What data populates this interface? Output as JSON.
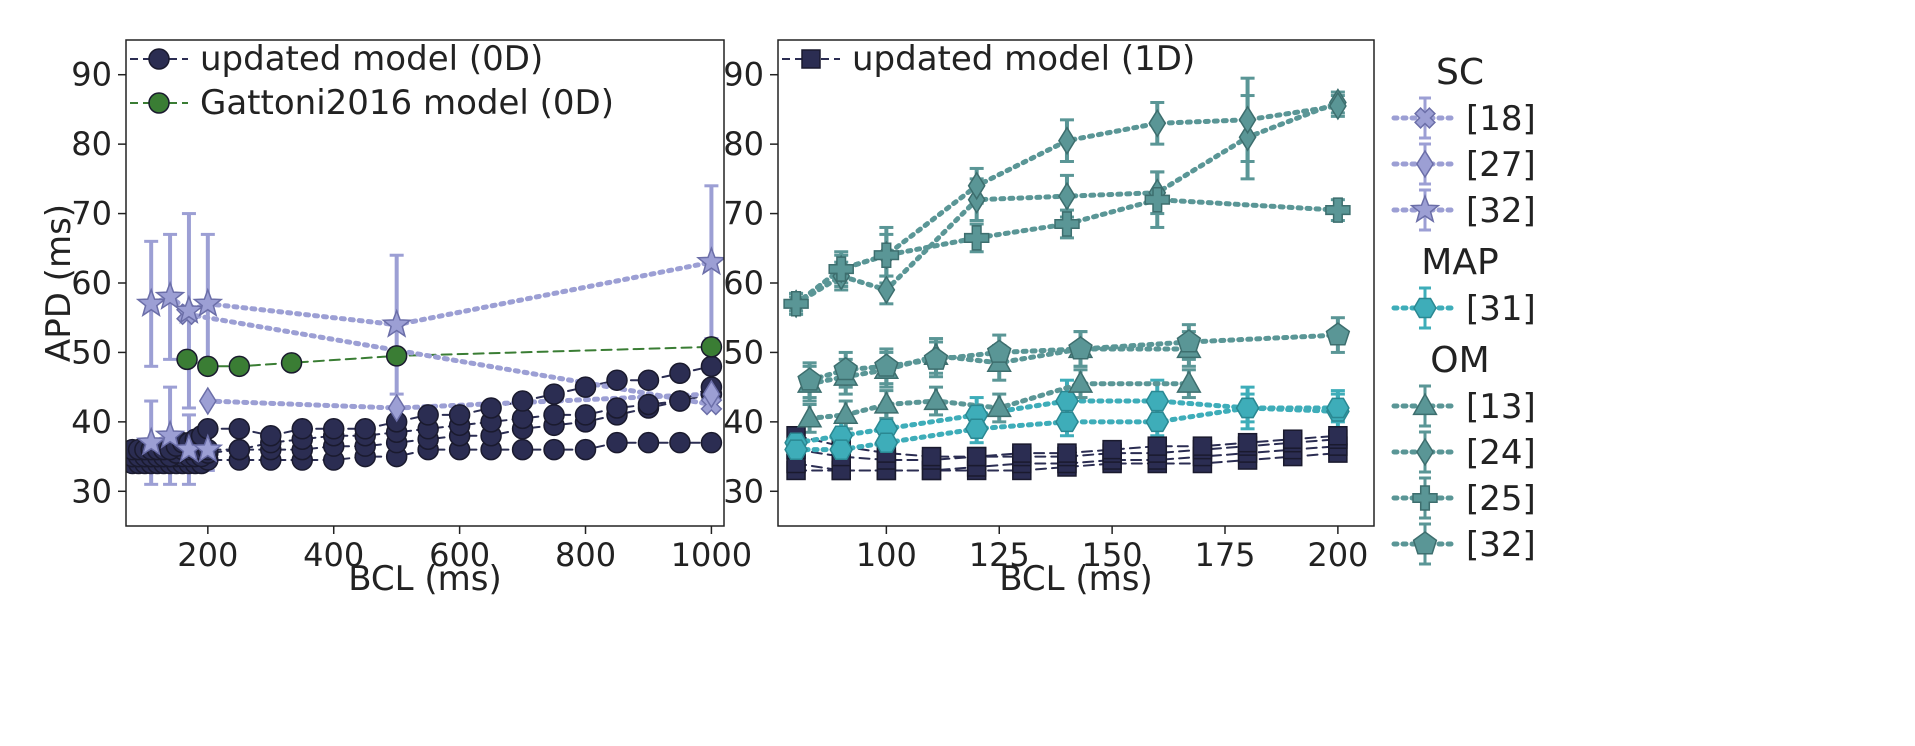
{
  "chart_data": [
    {
      "type": "line",
      "panel": "left",
      "xlabel": "BCL (ms)",
      "ylabel": "APD (ms)",
      "xlim": [
        70,
        1020
      ],
      "ylim": [
        25,
        95
      ],
      "xticks": [
        200,
        400,
        600,
        800,
        1000
      ],
      "yticks": [
        30,
        40,
        50,
        60,
        70,
        80,
        90
      ],
      "legend": [
        {
          "label": "updated model (0D)",
          "color": "#2b2d52",
          "marker": "circle",
          "linestyle": "dashed"
        },
        {
          "label": "Gattoni2016 model (0D)",
          "color": "#3a7d34",
          "marker": "circle",
          "linestyle": "dashed"
        }
      ],
      "series": [
        {
          "name": "updated model (0D)",
          "color": "#2b2d52",
          "marker": "circle",
          "dash": "dashed",
          "x": [
            80,
            90,
            100,
            110,
            120,
            130,
            140,
            150,
            160,
            170,
            180,
            190,
            200,
            250,
            300,
            350,
            400,
            450,
            500,
            550,
            600,
            650,
            700,
            750,
            800,
            850,
            900,
            950,
            1000
          ],
          "y": [
            34,
            34,
            34,
            34,
            34,
            34,
            34,
            34,
            34,
            34,
            34,
            34,
            34.5,
            34.5,
            34.5,
            34.5,
            34.5,
            35,
            35,
            36,
            36,
            36,
            36,
            36,
            36,
            37,
            37,
            37,
            37
          ]
        },
        {
          "name": "updated model (0D)",
          "color": "#2b2d52",
          "marker": "circle",
          "dash": "dashed",
          "x": [
            80,
            90,
            100,
            110,
            120,
            130,
            140,
            150,
            160,
            170,
            180,
            190,
            200,
            250,
            300,
            350,
            400,
            450,
            500,
            550,
            600,
            650,
            700,
            750,
            800,
            850,
            900,
            950,
            1000
          ],
          "y": [
            35,
            35,
            35,
            35,
            35,
            35,
            35,
            35,
            35,
            35,
            35,
            35,
            35.5,
            36,
            36,
            36,
            36.5,
            36.5,
            37,
            37.5,
            38,
            38,
            39,
            39.5,
            40,
            41,
            42,
            43,
            44
          ]
        },
        {
          "name": "updated model (0D)",
          "color": "#2b2d52",
          "marker": "circle",
          "dash": "dashed",
          "x": [
            80,
            90,
            100,
            110,
            120,
            130,
            140,
            150,
            160,
            170,
            180,
            190,
            200,
            250,
            300,
            350,
            400,
            450,
            500,
            550,
            600,
            650,
            700,
            750,
            800,
            850,
            900,
            950,
            1000
          ],
          "y": [
            35,
            35,
            35,
            35,
            35,
            35,
            35,
            35.5,
            36,
            36,
            36,
            36,
            36,
            36,
            37,
            37.5,
            38,
            38,
            38.5,
            39,
            39.5,
            40,
            40.5,
            41,
            41,
            42,
            42.5,
            43,
            45
          ]
        },
        {
          "name": "updated model (0D)",
          "color": "#2b2d52",
          "marker": "circle",
          "dash": "dashed",
          "x": [
            80,
            90,
            100,
            110,
            120,
            130,
            140,
            150,
            160,
            170,
            180,
            190,
            200,
            250,
            300,
            350,
            400,
            450,
            500,
            550,
            600,
            650,
            700,
            750,
            800,
            850,
            900,
            950,
            1000
          ],
          "y": [
            36,
            36,
            36,
            36,
            36,
            36,
            36,
            36.5,
            37,
            37,
            37.5,
            38,
            39,
            39,
            38,
            39,
            39,
            39,
            40,
            41,
            41,
            42,
            43,
            44,
            45,
            46,
            46,
            47,
            48
          ]
        },
        {
          "name": "Gattoni2016 model (0D)",
          "color": "#3a7d34",
          "marker": "circle",
          "dash": "dashed",
          "x": [
            167,
            200,
            250,
            333,
            500,
            1000
          ],
          "y": [
            49,
            48,
            48,
            48.5,
            49.5,
            50.8
          ]
        },
        {
          "name": "SC [18]",
          "color": "#9c9fd4",
          "edge": "#6b6ea8",
          "marker": "x-cross",
          "dash": "dotted",
          "x": [
            167,
            1000
          ],
          "y": [
            55.5,
            42.5
          ]
        },
        {
          "name": "SC [27]",
          "color": "#9c9fd4",
          "edge": "#6b6ea8",
          "marker": "diamond",
          "dash": "dotted",
          "x": [
            200,
            500,
            1000
          ],
          "y": [
            43,
            42,
            44
          ]
        },
        {
          "name": "SC [32]",
          "color": "#9c9fd4",
          "edge": "#6b6ea8",
          "marker": "star",
          "dash": "dotted",
          "x": [
            110,
            140,
            170,
            200,
            500,
            1000
          ],
          "y": [
            57,
            58,
            56,
            57,
            54,
            63
          ],
          "err": [
            9,
            9,
            14,
            10,
            10,
            11
          ]
        },
        {
          "name": "SC [32]",
          "color": "#9c9fd4",
          "edge": "#6b6ea8",
          "marker": "star",
          "dash": "dotted",
          "x": [
            110,
            140,
            170,
            200
          ],
          "y": [
            37,
            38,
            36,
            36
          ],
          "err": [
            6,
            7,
            5,
            3
          ]
        }
      ]
    },
    {
      "type": "line",
      "panel": "right",
      "xlabel": "BCL (ms)",
      "ylabel": "",
      "xlim": [
        76,
        208
      ],
      "ylim": [
        25,
        95
      ],
      "xticks": [
        100,
        125,
        150,
        175,
        200
      ],
      "yticks": [
        30,
        40,
        50,
        60,
        70,
        80,
        90
      ],
      "legend": [
        {
          "label": "updated model (1D)",
          "color": "#2b2d52",
          "marker": "square",
          "linestyle": "dashed"
        }
      ],
      "series": [
        {
          "name": "updated model (1D)",
          "color": "#2b2d52",
          "marker": "square",
          "dash": "dashed",
          "x": [
            80,
            90,
            100,
            110,
            120,
            130,
            140,
            150,
            160,
            170,
            180,
            190,
            200
          ],
          "y": [
            33,
            33,
            33,
            33,
            33,
            33,
            33.5,
            34,
            34,
            34,
            34.5,
            35,
            35.5
          ]
        },
        {
          "name": "updated model (1D)",
          "color": "#2b2d52",
          "marker": "square",
          "dash": "dashed",
          "x": [
            80,
            90,
            100,
            110,
            120,
            130,
            140,
            150,
            160,
            170,
            180,
            190,
            200
          ],
          "y": [
            34,
            33,
            33,
            33,
            33.5,
            34,
            34,
            34.5,
            34.5,
            35,
            35.5,
            36,
            36.5
          ]
        },
        {
          "name": "updated model (1D)",
          "color": "#2b2d52",
          "marker": "square",
          "dash": "dashed",
          "x": [
            80,
            90,
            100,
            110,
            120,
            130,
            140,
            150,
            160,
            170,
            180,
            190,
            200
          ],
          "y": [
            36,
            35,
            34.5,
            34.5,
            35,
            35,
            35,
            35.5,
            35.5,
            36,
            36.5,
            37,
            37.5
          ]
        },
        {
          "name": "updated model (1D)",
          "color": "#2b2d52",
          "marker": "square",
          "dash": "dashed",
          "x": [
            80,
            90,
            100,
            110,
            120,
            130,
            140,
            150,
            160,
            170,
            180,
            190,
            200
          ],
          "y": [
            38,
            36.5,
            35.5,
            35,
            35,
            35.5,
            35.5,
            36,
            36.5,
            36.5,
            37,
            37.5,
            38
          ]
        },
        {
          "name": "MAP [31]",
          "color": "#3eadb9",
          "edge": "#2a8892",
          "marker": "hexagon",
          "dash": "dotted",
          "x": [
            80,
            90,
            100,
            120,
            140,
            160,
            180,
            200
          ],
          "y": [
            37,
            38,
            39,
            41,
            43,
            43,
            42,
            41.5
          ],
          "err": [
            2,
            2,
            3,
            2.5,
            3,
            3,
            3,
            3
          ]
        },
        {
          "name": "MAP [31]",
          "color": "#3eadb9",
          "edge": "#2a8892",
          "marker": "hexagon",
          "dash": "dotted",
          "x": [
            80,
            90,
            100,
            120,
            140,
            160,
            180,
            200
          ],
          "y": [
            36,
            36,
            37,
            39,
            40,
            40,
            42,
            42
          ],
          "err": [
            2,
            2,
            2,
            2,
            2,
            2,
            2,
            2
          ]
        },
        {
          "name": "OM [13]",
          "color": "#5a9696",
          "edge": "#3d6e6e",
          "marker": "triangle",
          "dash": "dotted",
          "x": [
            83,
            91,
            100,
            111,
            125,
            143,
            167
          ],
          "y": [
            45.5,
            46.5,
            47.5,
            49.5,
            48.5,
            50.5,
            50.5
          ],
          "err": [
            2.5,
            2.5,
            2.5,
            2.5,
            2.5,
            2.5,
            2.5
          ]
        },
        {
          "name": "OM [13]",
          "color": "#5a9696",
          "edge": "#3d6e6e",
          "marker": "triangle",
          "dash": "dotted",
          "x": [
            83,
            91,
            100,
            111,
            125,
            143,
            167
          ],
          "y": [
            40.5,
            41,
            42.5,
            43,
            42,
            45.5,
            45.5
          ],
          "err": [
            2,
            2,
            2,
            2,
            2,
            2,
            2
          ]
        },
        {
          "name": "OM [24]",
          "color": "#5a9696",
          "edge": "#3d6e6e",
          "marker": "diamond",
          "dash": "dotted",
          "x": [
            80,
            90,
            100,
            120,
            140,
            160,
            180,
            200
          ],
          "y": [
            57,
            61,
            59,
            72,
            72.5,
            73,
            81,
            86
          ],
          "err": [
            1.5,
            2,
            2,
            3,
            3,
            3,
            6,
            1.5
          ]
        },
        {
          "name": "OM [24]",
          "color": "#5a9696",
          "edge": "#3d6e6e",
          "marker": "diamond",
          "dash": "dotted",
          "x": [
            80,
            90,
            100,
            120,
            140,
            160,
            180,
            200
          ],
          "y": [
            57,
            62,
            64,
            74,
            80.5,
            83,
            83.5,
            85.5
          ],
          "err": [
            1.5,
            2.5,
            4,
            2.5,
            3,
            3,
            6,
            1.5
          ]
        },
        {
          "name": "OM [25]",
          "color": "#5a9696",
          "edge": "#3d6e6e",
          "marker": "cross",
          "dash": "dotted",
          "x": [
            80,
            90,
            100,
            120,
            140,
            160,
            200
          ],
          "y": [
            57,
            62,
            64,
            66.5,
            68.5,
            72,
            70.5
          ],
          "err": [
            1,
            2,
            3,
            2,
            2,
            4,
            1.5
          ]
        },
        {
          "name": "OM [32]",
          "color": "#5a9696",
          "edge": "#3d6e6e",
          "marker": "pentagon",
          "dash": "dotted",
          "x": [
            83,
            91,
            100,
            111,
            125,
            143,
            167,
            200
          ],
          "y": [
            46,
            47.5,
            48,
            49,
            50,
            50.5,
            51.5,
            52.5
          ],
          "err": [
            2.5,
            2.5,
            2.5,
            2.5,
            2.5,
            2.5,
            2.5,
            2.5
          ]
        }
      ]
    }
  ],
  "shared_legend": {
    "groups": [
      {
        "title": "SC",
        "entries": [
          {
            "label": "[18]",
            "marker": "x-cross",
            "color": "#9c9fd4",
            "edge": "#6b6ea8"
          },
          {
            "label": "[27]",
            "marker": "diamond",
            "color": "#9c9fd4",
            "edge": "#6b6ea8"
          },
          {
            "label": "[32]",
            "marker": "star",
            "color": "#9c9fd4",
            "edge": "#6b6ea8"
          }
        ]
      },
      {
        "title": "MAP",
        "entries": [
          {
            "label": "[31]",
            "marker": "hexagon",
            "color": "#3eadb9",
            "edge": "#2a8892"
          }
        ]
      },
      {
        "title": "OM",
        "entries": [
          {
            "label": "[13]",
            "marker": "triangle",
            "color": "#5a9696",
            "edge": "#3d6e6e"
          },
          {
            "label": "[24]",
            "marker": "diamond",
            "color": "#5a9696",
            "edge": "#3d6e6e"
          },
          {
            "label": "[25]",
            "marker": "cross",
            "color": "#5a9696",
            "edge": "#3d6e6e"
          },
          {
            "label": "[32]",
            "marker": "pentagon",
            "color": "#5a9696",
            "edge": "#3d6e6e"
          }
        ]
      }
    ]
  }
}
